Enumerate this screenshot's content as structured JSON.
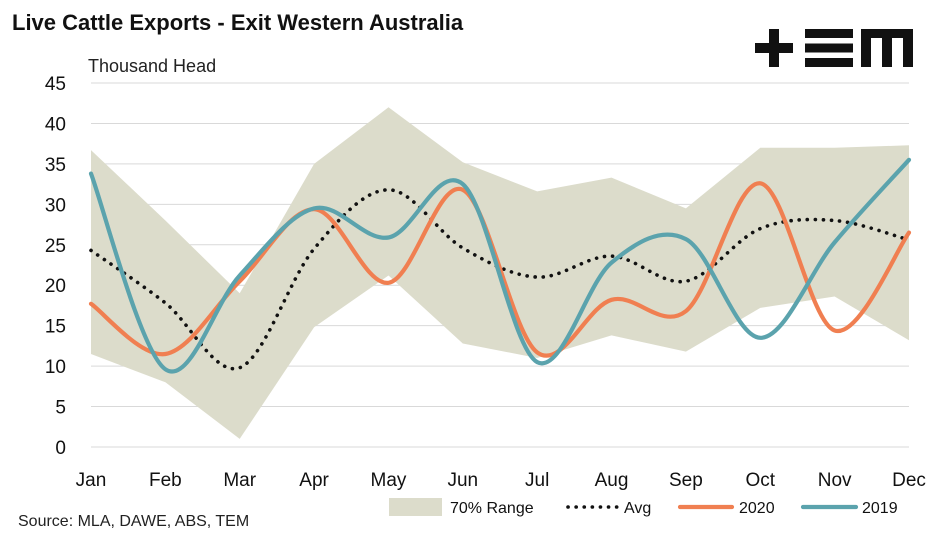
{
  "header": {
    "title": "Live Cattle Exports - Exit Western Australia",
    "unit_label": "Thousand Head",
    "logo_text": "+EM"
  },
  "footer": {
    "source": "Source: MLA, DAWE, ABS, TEM"
  },
  "colors": {
    "range_fill": "#dcdccb",
    "avg": "#111111",
    "y2020": "#f07f51",
    "y2019": "#5ba3ad",
    "grid": "#d9d9d9"
  },
  "chart_data": {
    "type": "line",
    "title": "Live Cattle Exports - Exit Western Australia",
    "ylabel": "Thousand Head",
    "xlabel": "",
    "categories": [
      "Jan",
      "Feb",
      "Mar",
      "Apr",
      "May",
      "Jun",
      "Jul",
      "Aug",
      "Sep",
      "Oct",
      "Nov",
      "Dec"
    ],
    "ylim": [
      0,
      45
    ],
    "yticks": [
      0,
      5,
      10,
      15,
      20,
      25,
      30,
      35,
      40,
      45
    ],
    "grid": true,
    "legend_position": "bottom-right",
    "range": {
      "name": "70% Range",
      "upper": [
        36.7,
        28.0,
        19.0,
        35.0,
        42.0,
        35.2,
        31.6,
        33.3,
        29.5,
        37.0,
        37.0,
        37.3
      ],
      "lower": [
        11.5,
        8.0,
        1.0,
        14.8,
        21.2,
        12.8,
        11.0,
        13.8,
        11.8,
        17.2,
        18.6,
        13.2
      ]
    },
    "series": [
      {
        "name": "Avg",
        "values": [
          24.3,
          17.8,
          9.8,
          24.5,
          31.8,
          24.6,
          21.0,
          23.6,
          20.5,
          27.0,
          28.0,
          25.6
        ]
      },
      {
        "name": "2020",
        "values": [
          17.7,
          11.5,
          20.5,
          29.4,
          20.3,
          31.8,
          11.7,
          18.2,
          16.8,
          32.6,
          14.4,
          26.5
        ]
      },
      {
        "name": "2019",
        "values": [
          33.8,
          9.6,
          21.2,
          29.5,
          25.9,
          32.5,
          10.5,
          22.8,
          25.7,
          13.5,
          25.3,
          35.5
        ]
      }
    ]
  }
}
